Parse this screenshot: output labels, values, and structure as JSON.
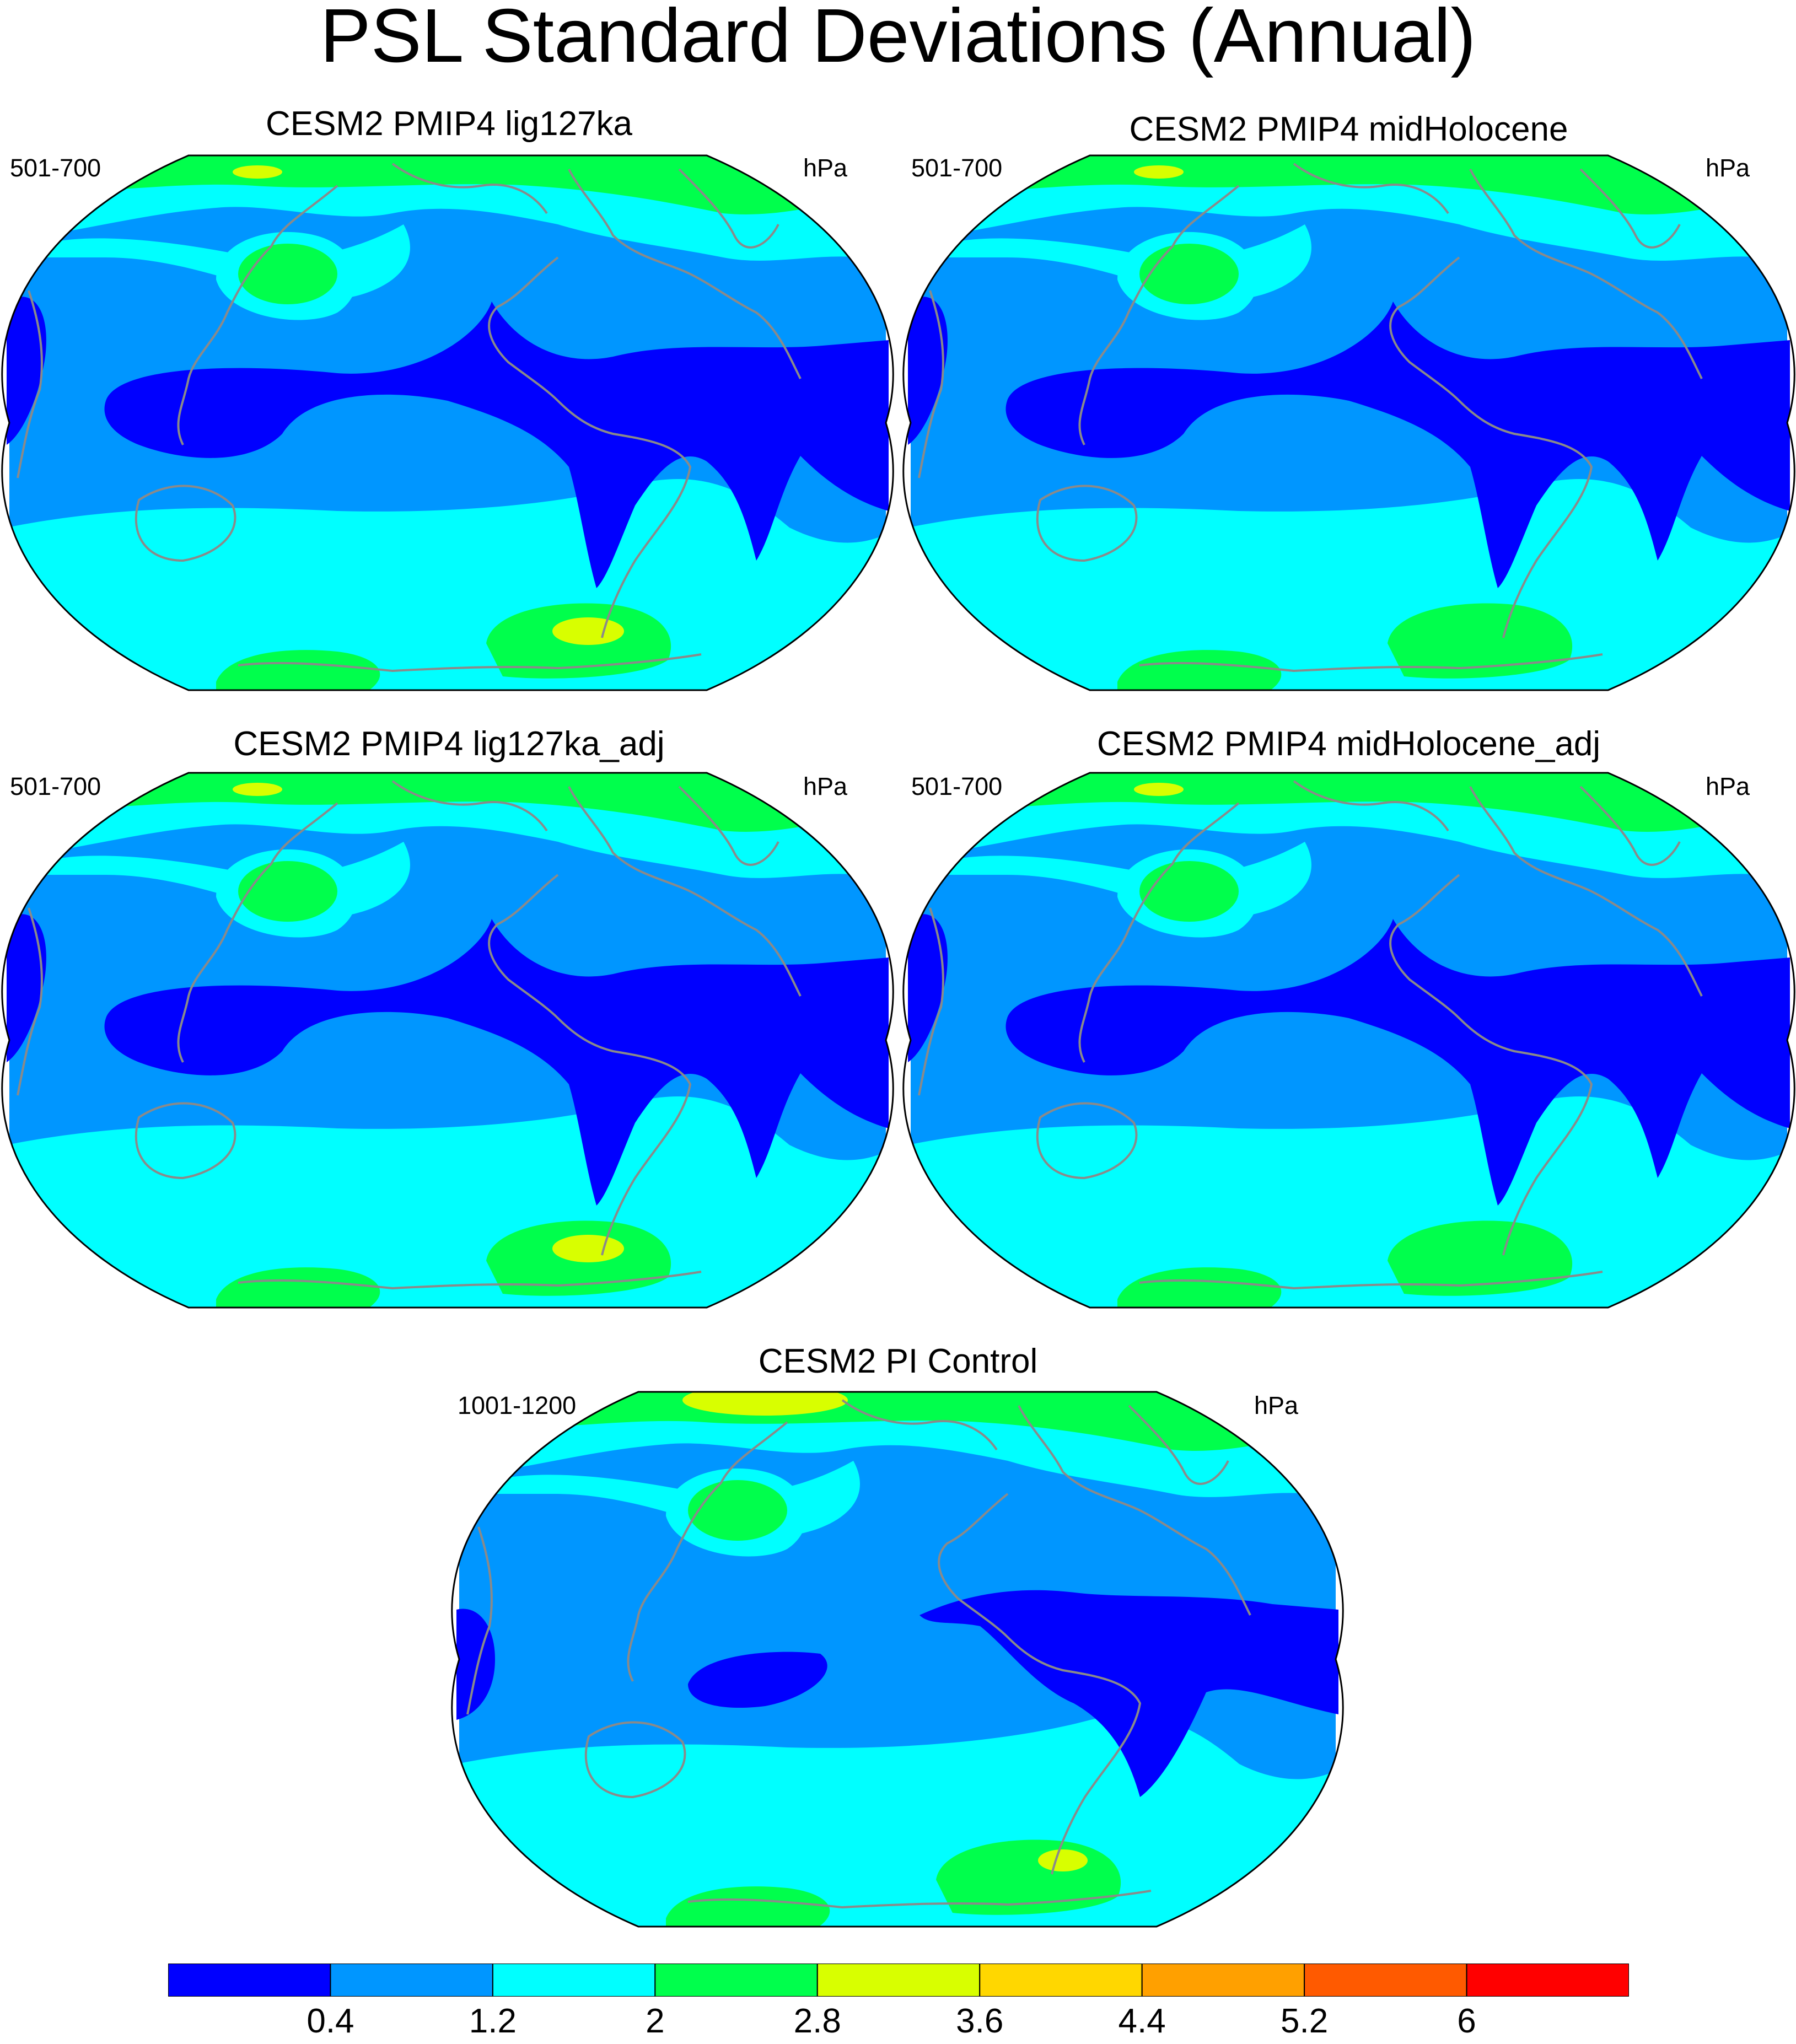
{
  "title": "PSL Standard Deviations (Annual)",
  "palette": {
    "levels": [
      "#0000ff",
      "#0096ff",
      "#00ffff",
      "#00ff4c",
      "#d8ff00",
      "#ffd700",
      "#ffa000",
      "#ff5a00",
      "#ff0000"
    ],
    "coastline": "#8a8a8a",
    "outline": "#000000"
  },
  "panels": [
    {
      "id": "lig127ka",
      "title": "CESM2 PMIP4 lig127ka",
      "left_label": "501-700",
      "right_label": "hPa"
    },
    {
      "id": "midHolocene",
      "title": "CESM2 PMIP4 midHolocene",
      "left_label": "501-700",
      "right_label": "hPa"
    },
    {
      "id": "lig127ka_adj",
      "title": "CESM2 PMIP4 lig127ka_adj",
      "left_label": "501-700",
      "right_label": "hPa"
    },
    {
      "id": "midHolocene_adj",
      "title": "CESM2 PMIP4 midHolocene_adj",
      "left_label": "501-700",
      "right_label": "hPa"
    },
    {
      "id": "pi_control",
      "title": "CESM2 PI Control",
      "left_label": "1001-1200",
      "right_label": "hPa"
    }
  ],
  "colorbar": {
    "labels": [
      "0.4",
      "1.2",
      "2",
      "2.8",
      "3.6",
      "4.4",
      "5.2",
      "6"
    ]
  },
  "chart_data": {
    "type": "heatmap",
    "variable": "PSL",
    "units": "hPa",
    "statistic": "standard deviation",
    "season": "Annual",
    "contour_levels": [
      0.4,
      1.2,
      2,
      2.8,
      3.6,
      4.4,
      5.2,
      6
    ],
    "panels": [
      "CESM2 PMIP4 lig127ka",
      "CESM2 PMIP4 midHolocene",
      "CESM2 PMIP4 lig127ka_adj",
      "CESM2 PMIP4 midHolocene_adj",
      "CESM2 PI Control"
    ]
  }
}
